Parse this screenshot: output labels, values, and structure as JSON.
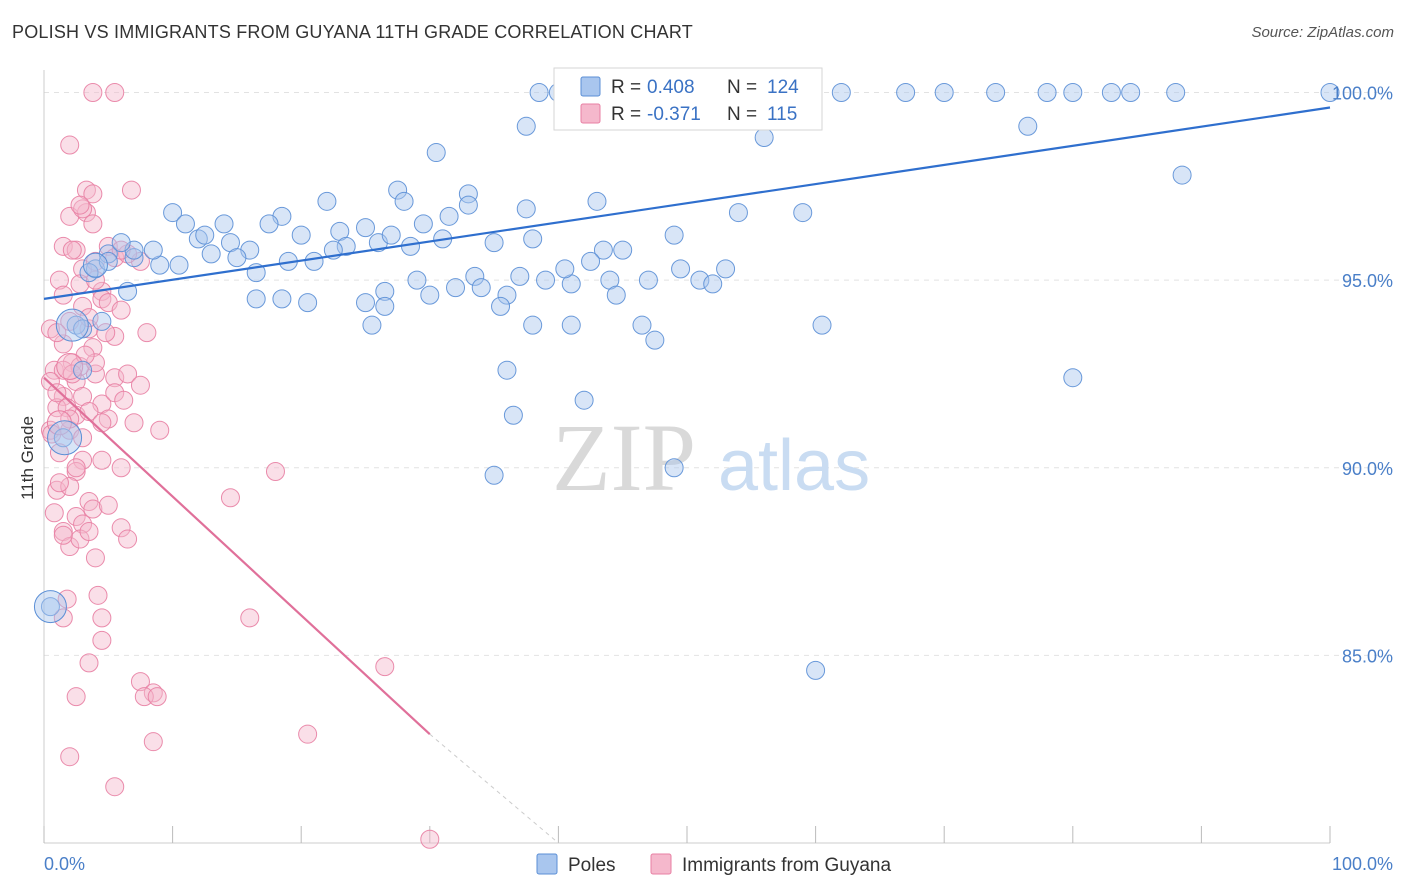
{
  "title": "POLISH VS IMMIGRANTS FROM GUYANA 11TH GRADE CORRELATION CHART",
  "source": "Source: ZipAtlas.com",
  "watermark": {
    "zip": "ZIP",
    "atlas": "atlas"
  },
  "colors": {
    "poles_fill": "#a9c6ee",
    "poles_stroke": "#5b8fd6",
    "poles_line": "#2f6fce",
    "guyana_fill": "#f5b8cc",
    "guyana_stroke": "#e87fa3",
    "guyana_line": "#e0709a",
    "tick_text": "#4a7fc8",
    "grid": "#e2e2e2"
  },
  "legend_box": {
    "poles": {
      "r_label": "R = ",
      "r_value": "0.408",
      "n_label": "N = ",
      "n_value": "124"
    },
    "guyana": {
      "r_label": "R = ",
      "r_value": "-0.371",
      "n_label": "N = ",
      "n_value": "115"
    }
  },
  "bottom_legend": {
    "poles": "Poles",
    "guyana": "Immigrants from Guyana"
  },
  "chart_data": {
    "type": "scatter",
    "title": "POLISH VS IMMIGRANTS FROM GUYANA 11TH GRADE CORRELATION CHART",
    "xlabel": "",
    "ylabel": "11th Grade",
    "xlim": [
      0,
      100
    ],
    "ylim": [
      80,
      100.6
    ],
    "x_tick_labels": [
      "0.0%",
      "100.0%"
    ],
    "y_ticks": [
      100,
      95,
      90,
      85
    ],
    "y_tick_labels": [
      "100.0%",
      "95.0%",
      "90.0%",
      "85.0%"
    ],
    "grid": true,
    "legend_placement": "top-center",
    "series": [
      {
        "name": "Poles",
        "R": 0.408,
        "N": 124,
        "trend": {
          "x": [
            0,
            100
          ],
          "y": [
            94.5,
            99.6
          ]
        },
        "points": [
          [
            38.5,
            100
          ],
          [
            40,
            100
          ],
          [
            41,
            100
          ],
          [
            43,
            100
          ],
          [
            44,
            100
          ],
          [
            46,
            100
          ],
          [
            48,
            100
          ],
          [
            50,
            100
          ],
          [
            52,
            100
          ],
          [
            55,
            100
          ],
          [
            58,
            100
          ],
          [
            62,
            100
          ],
          [
            67,
            100
          ],
          [
            70,
            100
          ],
          [
            74,
            100
          ],
          [
            78,
            100
          ],
          [
            80,
            100
          ],
          [
            83,
            100
          ],
          [
            84.5,
            100
          ],
          [
            88,
            100
          ],
          [
            100,
            100
          ],
          [
            37.5,
            99.1
          ],
          [
            76.5,
            99.1
          ],
          [
            56,
            98.8
          ],
          [
            30.5,
            98.4
          ],
          [
            88.5,
            97.8
          ],
          [
            27.5,
            97.4
          ],
          [
            33,
            97.3
          ],
          [
            22,
            97.1
          ],
          [
            28,
            97.1
          ],
          [
            43,
            97.1
          ],
          [
            37.5,
            96.9
          ],
          [
            54,
            96.8
          ],
          [
            59,
            96.8
          ],
          [
            10,
            96.8
          ],
          [
            18.5,
            96.7
          ],
          [
            31.5,
            96.7
          ],
          [
            11,
            96.5
          ],
          [
            14,
            96.5
          ],
          [
            17.5,
            96.5
          ],
          [
            25,
            96.4
          ],
          [
            23,
            96.3
          ],
          [
            20,
            96.2
          ],
          [
            49,
            96.2
          ],
          [
            12,
            96.1
          ],
          [
            14.5,
            96.0
          ],
          [
            26,
            96.0
          ],
          [
            35,
            96.0
          ],
          [
            23.5,
            95.9
          ],
          [
            28.5,
            95.9
          ],
          [
            16,
            95.8
          ],
          [
            43.5,
            95.8
          ],
          [
            5,
            95.7
          ],
          [
            7,
            95.6
          ],
          [
            15,
            95.6
          ],
          [
            19,
            95.5
          ],
          [
            21,
            95.5
          ],
          [
            9,
            95.4
          ],
          [
            10.5,
            95.4
          ],
          [
            4,
            95.3
          ],
          [
            53,
            95.3
          ],
          [
            16.5,
            95.2
          ],
          [
            33.5,
            95.1
          ],
          [
            37,
            95.1
          ],
          [
            29,
            95.0
          ],
          [
            39,
            95.0
          ],
          [
            44,
            95.0
          ],
          [
            47,
            95.0
          ],
          [
            41,
            94.9
          ],
          [
            32,
            94.8
          ],
          [
            34,
            94.8
          ],
          [
            26.5,
            94.7
          ],
          [
            30,
            94.6
          ],
          [
            36,
            94.6
          ],
          [
            6.5,
            94.7
          ],
          [
            16.5,
            94.5
          ],
          [
            18.5,
            94.5
          ],
          [
            20.5,
            94.4
          ],
          [
            25,
            94.4
          ],
          [
            26.5,
            94.3
          ],
          [
            35.5,
            94.3
          ],
          [
            2.5,
            93.8
          ],
          [
            25.5,
            93.8
          ],
          [
            38,
            93.8
          ],
          [
            41,
            93.8
          ],
          [
            46.5,
            93.8
          ],
          [
            60.5,
            93.8
          ],
          [
            47.5,
            93.4
          ],
          [
            3,
            92.6
          ],
          [
            36,
            92.6
          ],
          [
            80,
            92.4
          ],
          [
            42,
            91.8
          ],
          [
            36.5,
            91.4
          ],
          [
            35,
            89.8
          ],
          [
            49,
            90.0
          ],
          [
            60,
            84.6
          ],
          [
            1.5,
            90.8
          ],
          [
            0.5,
            86.3
          ],
          [
            5,
            95.5
          ],
          [
            7,
            95.8
          ],
          [
            3.5,
            95.2
          ],
          [
            6,
            96.0
          ],
          [
            8.5,
            95.8
          ],
          [
            12.5,
            96.2
          ],
          [
            13,
            95.7
          ],
          [
            22.5,
            95.8
          ],
          [
            27,
            96.2
          ],
          [
            29.5,
            96.5
          ],
          [
            31,
            96.1
          ],
          [
            33,
            97.0
          ],
          [
            38,
            96.1
          ],
          [
            45,
            95.8
          ],
          [
            49.5,
            95.3
          ],
          [
            51,
            95.0
          ],
          [
            52,
            94.9
          ],
          [
            40.5,
            95.3
          ],
          [
            42.5,
            95.5
          ],
          [
            44.5,
            94.6
          ],
          [
            3,
            93.7
          ],
          [
            4.5,
            93.9
          ]
        ]
      },
      {
        "name": "Immigrants from Guyana",
        "R": -0.371,
        "N": 115,
        "trend": {
          "x": [
            0,
            30
          ],
          "y": [
            92.4,
            82.9
          ]
        },
        "trend_dashed": {
          "x": [
            30,
            40
          ],
          "y": [
            82.9,
            79.8
          ]
        },
        "points": [
          [
            3.8,
            100
          ],
          [
            5.5,
            100
          ],
          [
            2,
            98.6
          ],
          [
            3.3,
            97.4
          ],
          [
            3.8,
            97.3
          ],
          [
            6.8,
            97.4
          ],
          [
            2,
            96.7
          ],
          [
            3.3,
            96.8
          ],
          [
            3.8,
            96.5
          ],
          [
            1.5,
            95.9
          ],
          [
            2.5,
            95.8
          ],
          [
            5,
            95.9
          ],
          [
            3,
            95.3
          ],
          [
            4,
            95.5
          ],
          [
            5.5,
            95.6
          ],
          [
            7.5,
            95.5
          ],
          [
            1.2,
            95.0
          ],
          [
            2.8,
            94.9
          ],
          [
            4.5,
            94.7
          ],
          [
            1.5,
            94.6
          ],
          [
            3,
            94.3
          ],
          [
            4.5,
            94.5
          ],
          [
            0.5,
            93.7
          ],
          [
            2,
            93.9
          ],
          [
            3.5,
            93.7
          ],
          [
            5.5,
            93.5
          ],
          [
            8,
            93.6
          ],
          [
            1.5,
            93.3
          ],
          [
            2.2,
            92.8
          ],
          [
            3.8,
            93.2
          ],
          [
            0.8,
            92.6
          ],
          [
            2.5,
            92.3
          ],
          [
            4,
            92.5
          ],
          [
            5.5,
            92.4
          ],
          [
            6.5,
            92.5
          ],
          [
            7.5,
            92.2
          ],
          [
            1.5,
            91.9
          ],
          [
            3,
            91.9
          ],
          [
            4.5,
            91.7
          ],
          [
            5.5,
            92.0
          ],
          [
            6.2,
            91.8
          ],
          [
            1,
            91.6
          ],
          [
            2.5,
            91.4
          ],
          [
            3.5,
            91.5
          ],
          [
            5,
            91.3
          ],
          [
            0.5,
            91.0
          ],
          [
            2,
            91.0
          ],
          [
            3,
            90.8
          ],
          [
            4.5,
            91.2
          ],
          [
            9,
            91.0
          ],
          [
            1.2,
            90.4
          ],
          [
            3,
            90.2
          ],
          [
            4.5,
            90.2
          ],
          [
            2.5,
            89.9
          ],
          [
            6,
            90.0
          ],
          [
            18,
            89.9
          ],
          [
            1,
            89.4
          ],
          [
            2,
            89.5
          ],
          [
            3.5,
            89.1
          ],
          [
            14.5,
            89.2
          ],
          [
            0.8,
            88.8
          ],
          [
            2.5,
            88.7
          ],
          [
            3.8,
            88.9
          ],
          [
            1.5,
            88.3
          ],
          [
            3,
            88.5
          ],
          [
            6,
            88.4
          ],
          [
            2,
            87.9
          ],
          [
            2.8,
            88.1
          ],
          [
            6.5,
            88.1
          ],
          [
            4,
            87.6
          ],
          [
            1.8,
            86.5
          ],
          [
            4.2,
            86.6
          ],
          [
            1.5,
            86.0
          ],
          [
            4.5,
            86.0
          ],
          [
            16,
            86.0
          ],
          [
            4.5,
            85.4
          ],
          [
            3.5,
            84.8
          ],
          [
            26.5,
            84.7
          ],
          [
            7.5,
            84.3
          ],
          [
            8.5,
            84.0
          ],
          [
            2.5,
            83.9
          ],
          [
            7.8,
            83.9
          ],
          [
            8.8,
            83.9
          ],
          [
            20.5,
            82.9
          ],
          [
            8.5,
            82.7
          ],
          [
            2,
            82.3
          ],
          [
            5.5,
            81.5
          ],
          [
            30,
            80.1
          ],
          [
            1.5,
            92.6
          ],
          [
            2.8,
            92.7
          ],
          [
            0.5,
            92.3
          ],
          [
            1.8,
            91.6
          ],
          [
            3.5,
            94.0
          ],
          [
            5,
            94.4
          ],
          [
            6.5,
            95.7
          ],
          [
            2.2,
            95.8
          ],
          [
            1,
            93.6
          ],
          [
            4,
            92.8
          ],
          [
            0.6,
            90.9
          ],
          [
            1.5,
            88.2
          ],
          [
            5,
            89.0
          ],
          [
            2.2,
            92.5
          ],
          [
            3.2,
            93.0
          ],
          [
            1,
            92.0
          ],
          [
            2,
            91.3
          ],
          [
            6,
            94.2
          ],
          [
            4,
            95.0
          ],
          [
            3,
            96.9
          ],
          [
            2.8,
            97.0
          ],
          [
            6,
            95.8
          ],
          [
            2.5,
            90.0
          ],
          [
            1.2,
            89.6
          ],
          [
            3.5,
            88.3
          ],
          [
            7,
            91.2
          ],
          [
            4.8,
            93.6
          ]
        ]
      }
    ]
  }
}
